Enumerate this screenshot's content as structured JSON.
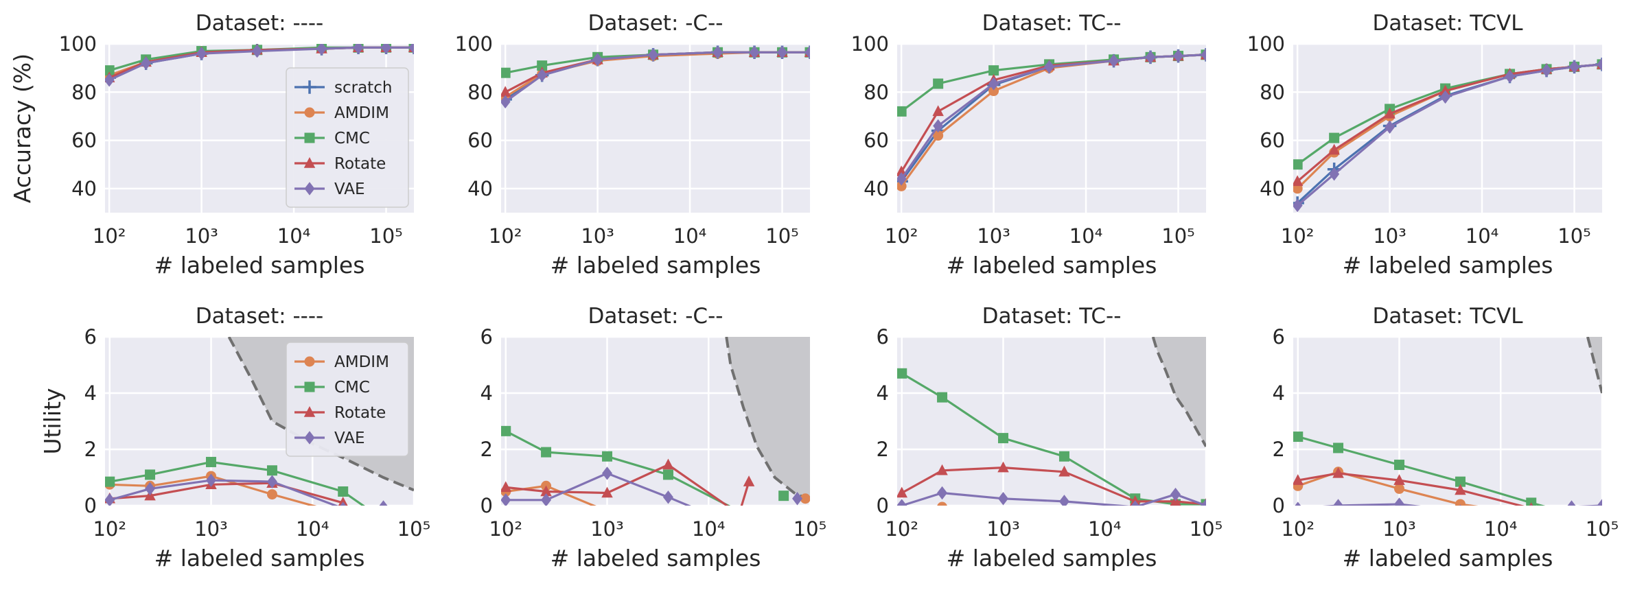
{
  "colors": {
    "scratch": "#4c72b0",
    "AMDIM": "#dd8452",
    "CMC": "#55a868",
    "Rotate": "#c44e52",
    "VAE": "#8172b3",
    "axes_bg": "#eaeaf2",
    "grid": "#ffffff",
    "shade": "#c8c8cc",
    "boundary": "#707070"
  },
  "markers": {
    "scratch": "plus",
    "AMDIM": "circle",
    "CMC": "square",
    "Rotate": "triangle",
    "VAE": "diamond"
  },
  "labels": {
    "xlabel": "# labeled samples",
    "ylabel_top": "Accuracy (%)",
    "ylabel_bottom": "Utility"
  },
  "chart_data": [
    {
      "type": "line",
      "row": "accuracy",
      "title": "Dataset: ----",
      "xlabel": "# labeled samples",
      "ylabel": "Accuracy (%)",
      "xscale": "log",
      "xlim": [
        90,
        200000
      ],
      "ylim": [
        30,
        100
      ],
      "xticks": [
        100,
        1000,
        10000,
        100000
      ],
      "yticks": [
        40,
        60,
        80,
        100
      ],
      "legend": {
        "position": "lower right",
        "entries": [
          "scratch",
          "AMDIM",
          "CMC",
          "Rotate",
          "VAE"
        ]
      },
      "series": [
        {
          "name": "scratch",
          "x": [
            100,
            250,
            1000,
            4000,
            20000,
            50000,
            100000,
            200000
          ],
          "y": [
            86,
            92,
            96,
            97.5,
            98,
            98.5,
            98.5,
            98.5
          ]
        },
        {
          "name": "AMDIM",
          "x": [
            100,
            250,
            1000,
            4000,
            20000,
            50000,
            100000,
            200000
          ],
          "y": [
            87,
            92.5,
            96.5,
            97.5,
            98,
            98.5,
            98.5,
            98.5
          ]
        },
        {
          "name": "CMC",
          "x": [
            100,
            250,
            1000,
            4000,
            20000,
            50000,
            100000,
            200000
          ],
          "y": [
            89,
            93.5,
            97,
            97.5,
            98.5,
            98.5,
            98.5,
            98.5
          ]
        },
        {
          "name": "Rotate",
          "x": [
            100,
            250,
            1000,
            4000,
            20000,
            50000,
            100000,
            200000
          ],
          "y": [
            86,
            92.5,
            96.5,
            97.5,
            98,
            98.5,
            98.5,
            98.5
          ]
        },
        {
          "name": "VAE",
          "x": [
            100,
            250,
            1000,
            4000,
            20000,
            50000,
            100000,
            200000
          ],
          "y": [
            85,
            92,
            96,
            97,
            98,
            98.5,
            98.5,
            98.5
          ]
        }
      ]
    },
    {
      "type": "line",
      "row": "accuracy",
      "title": "Dataset: -C--",
      "xlabel": "# labeled samples",
      "ylabel": "",
      "xscale": "log",
      "xlim": [
        90,
        200000
      ],
      "ylim": [
        30,
        100
      ],
      "xticks": [
        100,
        1000,
        10000,
        100000
      ],
      "yticks": [
        40,
        60,
        80,
        100
      ],
      "series": [
        {
          "name": "scratch",
          "x": [
            100,
            250,
            1000,
            4000,
            20000,
            50000,
            100000,
            200000
          ],
          "y": [
            77,
            87,
            93.5,
            95.5,
            96.5,
            96.5,
            96.5,
            96.5
          ]
        },
        {
          "name": "AMDIM",
          "x": [
            100,
            250,
            1000,
            4000,
            20000,
            50000,
            100000,
            200000
          ],
          "y": [
            78,
            87.5,
            93,
            95,
            96,
            96.5,
            96.5,
            96.5
          ]
        },
        {
          "name": "CMC",
          "x": [
            100,
            250,
            1000,
            4000,
            20000,
            50000,
            100000,
            200000
          ],
          "y": [
            88,
            91,
            94.5,
            95.5,
            96.5,
            96.5,
            96.5,
            96.5
          ]
        },
        {
          "name": "Rotate",
          "x": [
            100,
            250,
            1000,
            4000,
            20000,
            50000,
            100000,
            200000
          ],
          "y": [
            80,
            88,
            93.5,
            95.5,
            96.5,
            96.5,
            96.5,
            96.5
          ]
        },
        {
          "name": "VAE",
          "x": [
            100,
            250,
            1000,
            4000,
            20000,
            50000,
            100000,
            200000
          ],
          "y": [
            76,
            87,
            93.5,
            95.5,
            96.5,
            96.5,
            96.5,
            96.5
          ]
        }
      ]
    },
    {
      "type": "line",
      "row": "accuracy",
      "title": "Dataset: TC--",
      "xlabel": "# labeled samples",
      "ylabel": "",
      "xscale": "log",
      "xlim": [
        90,
        200000
      ],
      "ylim": [
        30,
        100
      ],
      "xticks": [
        100,
        1000,
        10000,
        100000
      ],
      "yticks": [
        40,
        60,
        80,
        100
      ],
      "series": [
        {
          "name": "scratch",
          "x": [
            100,
            250,
            1000,
            4000,
            20000,
            50000,
            100000,
            200000
          ],
          "y": [
            43,
            64,
            83,
            90.5,
            93,
            94.5,
            95,
            95.5
          ]
        },
        {
          "name": "AMDIM",
          "x": [
            100,
            250,
            1000,
            4000,
            20000,
            50000,
            100000,
            200000
          ],
          "y": [
            41,
            62,
            80.5,
            90,
            93,
            94.5,
            95,
            95.5
          ]
        },
        {
          "name": "CMC",
          "x": [
            100,
            250,
            1000,
            4000,
            20000,
            50000,
            100000,
            200000
          ],
          "y": [
            72,
            83.5,
            89,
            91.5,
            93.5,
            94.5,
            95,
            95.5
          ]
        },
        {
          "name": "Rotate",
          "x": [
            100,
            250,
            1000,
            4000,
            20000,
            50000,
            100000,
            200000
          ],
          "y": [
            47,
            72,
            85,
            91,
            93,
            94.5,
            95,
            95.5
          ]
        },
        {
          "name": "VAE",
          "x": [
            100,
            250,
            1000,
            4000,
            20000,
            50000,
            100000,
            200000
          ],
          "y": [
            44,
            66,
            83.5,
            90.5,
            93,
            94.5,
            95,
            95.5
          ]
        }
      ]
    },
    {
      "type": "line",
      "row": "accuracy",
      "title": "Dataset: TCVL",
      "xlabel": "# labeled samples",
      "ylabel": "",
      "xscale": "log",
      "xlim": [
        90,
        200000
      ],
      "ylim": [
        30,
        100
      ],
      "xticks": [
        100,
        1000,
        10000,
        100000
      ],
      "yticks": [
        40,
        60,
        80,
        100
      ],
      "series": [
        {
          "name": "scratch",
          "x": [
            100,
            250,
            1000,
            4000,
            20000,
            50000,
            100000,
            200000
          ],
          "y": [
            34,
            48,
            66,
            78.5,
            86.5,
            89,
            90.5,
            91.5
          ]
        },
        {
          "name": "AMDIM",
          "x": [
            100,
            250,
            1000,
            4000,
            20000,
            50000,
            100000,
            200000
          ],
          "y": [
            40,
            55,
            70,
            80.5,
            87.5,
            89.5,
            90.5,
            91.5
          ]
        },
        {
          "name": "CMC",
          "x": [
            100,
            250,
            1000,
            4000,
            20000,
            50000,
            100000,
            200000
          ],
          "y": [
            50,
            61,
            73,
            81.5,
            87.5,
            89.5,
            90.5,
            91.5
          ]
        },
        {
          "name": "Rotate",
          "x": [
            100,
            250,
            1000,
            4000,
            20000,
            50000,
            100000,
            200000
          ],
          "y": [
            43,
            56,
            71,
            80.5,
            87.5,
            89.5,
            90.5,
            91.5
          ]
        },
        {
          "name": "VAE",
          "x": [
            100,
            250,
            1000,
            4000,
            20000,
            50000,
            100000,
            200000
          ],
          "y": [
            33,
            46,
            65.5,
            78,
            86.5,
            89,
            90.5,
            91.5
          ]
        }
      ]
    },
    {
      "type": "line",
      "row": "utility",
      "title": "Dataset: ----",
      "xlabel": "# labeled samples",
      "ylabel": "Utility",
      "xscale": "log",
      "xlim": [
        90,
        100000
      ],
      "ylim": [
        0,
        6
      ],
      "xticks": [
        100,
        1000,
        10000,
        100000
      ],
      "yticks": [
        0,
        2,
        4,
        6
      ],
      "legend": {
        "position": "upper right",
        "entries": [
          "AMDIM",
          "CMC",
          "Rotate",
          "VAE"
        ]
      },
      "boundary": {
        "x": [
          1500,
          2500,
          4000,
          10000,
          20000,
          50000,
          100000
        ],
        "y": [
          6,
          4.5,
          3,
          2.2,
          1.7,
          1.0,
          0.55
        ]
      },
      "series": [
        {
          "name": "AMDIM",
          "x": [
            100,
            250,
            1000,
            4000,
            20000
          ],
          "y": [
            0.75,
            0.7,
            1.05,
            0.4,
            -0.3
          ]
        },
        {
          "name": "CMC",
          "x": [
            100,
            250,
            1000,
            4000,
            20000,
            50000
          ],
          "y": [
            0.85,
            1.1,
            1.55,
            1.25,
            0.5,
            -0.5
          ]
        },
        {
          "name": "Rotate",
          "x": [
            100,
            250,
            1000,
            4000,
            20000
          ],
          "y": [
            0.25,
            0.35,
            0.75,
            0.8,
            0.1
          ]
        },
        {
          "name": "VAE",
          "x": [
            100,
            250,
            1000,
            4000,
            20000,
            50000
          ],
          "y": [
            0.2,
            0.6,
            0.9,
            0.85,
            -0.1,
            -0.05
          ]
        }
      ]
    },
    {
      "type": "line",
      "row": "utility",
      "title": "Dataset: -C--",
      "xlabel": "# labeled samples",
      "ylabel": "",
      "xscale": "log",
      "xlim": [
        90,
        100000
      ],
      "ylim": [
        0,
        6
      ],
      "xticks": [
        100,
        1000,
        10000,
        100000
      ],
      "yticks": [
        0,
        2,
        4,
        6
      ],
      "boundary": {
        "x": [
          15000,
          16500,
          22000,
          30000,
          45000,
          70000,
          100000
        ],
        "y": [
          6,
          5.0,
          3.5,
          2.1,
          1.0,
          0.45,
          0.2
        ]
      },
      "series": [
        {
          "name": "AMDIM",
          "x": [
            100,
            250,
            1000
          ],
          "y": [
            0.5,
            0.7,
            -0.2
          ]
        },
        {
          "name": "CMC",
          "x": [
            100,
            250,
            1000,
            4000,
            20000
          ],
          "y": [
            2.65,
            1.9,
            1.75,
            1.1,
            -0.2
          ]
        },
        {
          "name": "Rotate",
          "x": [
            100,
            250,
            1000,
            4000,
            20000,
            25000
          ],
          "y": [
            0.65,
            0.5,
            0.45,
            1.45,
            -0.3,
            0.85
          ]
        },
        {
          "name": "VAE",
          "x": [
            100,
            250,
            1000,
            4000,
            10000
          ],
          "y": [
            0.2,
            0.2,
            1.15,
            0.3,
            -0.3
          ]
        },
        {
          "name": "AMDIM",
          "x": [
            90000
          ],
          "y": [
            0.25
          ]
        },
        {
          "name": "CMC",
          "x": [
            55000
          ],
          "y": [
            0.35
          ]
        },
        {
          "name": "VAE",
          "x": [
            75000
          ],
          "y": [
            0.25
          ]
        }
      ]
    },
    {
      "type": "line",
      "row": "utility",
      "title": "Dataset: TC--",
      "xlabel": "# labeled samples",
      "ylabel": "",
      "xscale": "log",
      "xlim": [
        90,
        100000
      ],
      "ylim": [
        0,
        6
      ],
      "xticks": [
        100,
        1000,
        10000,
        100000
      ],
      "yticks": [
        0,
        2,
        4,
        6
      ],
      "boundary": {
        "x": [
          30000,
          33000,
          40000,
          50000,
          65000,
          100000
        ],
        "y": [
          6,
          5.5,
          4.8,
          3.9,
          3.3,
          2.1
        ]
      },
      "series": [
        {
          "name": "AMDIM",
          "x": [
            100,
            250
          ],
          "y": [
            -0.1,
            -0.05
          ]
        },
        {
          "name": "CMC",
          "x": [
            100,
            250,
            1000,
            4000,
            20000,
            50000,
            100000
          ],
          "y": [
            4.7,
            3.85,
            2.4,
            1.75,
            0.25,
            0.05,
            0.05
          ]
        },
        {
          "name": "Rotate",
          "x": [
            100,
            250,
            1000,
            4000,
            20000,
            50000,
            100000
          ],
          "y": [
            0.45,
            1.25,
            1.35,
            1.2,
            0.15,
            0.15,
            0.05
          ]
        },
        {
          "name": "VAE",
          "x": [
            100,
            250,
            1000,
            4000,
            20000,
            50000,
            100000
          ],
          "y": [
            0.0,
            0.45,
            0.25,
            0.15,
            -0.05,
            0.4,
            0.0
          ]
        }
      ]
    },
    {
      "type": "line",
      "row": "utility",
      "title": "Dataset: TCVL",
      "xlabel": "# labeled samples",
      "ylabel": "",
      "xscale": "log",
      "xlim": [
        90,
        100000
      ],
      "ylim": [
        0,
        6
      ],
      "xticks": [
        100,
        1000,
        10000,
        100000
      ],
      "yticks": [
        0,
        2,
        4,
        6
      ],
      "boundary": {
        "x": [
          72000,
          85000,
          100000
        ],
        "y": [
          6,
          5.0,
          4.0
        ]
      },
      "series": [
        {
          "name": "AMDIM",
          "x": [
            100,
            250,
            1000,
            4000,
            20000
          ],
          "y": [
            0.7,
            1.2,
            0.6,
            0.05,
            -0.3
          ]
        },
        {
          "name": "CMC",
          "x": [
            100,
            250,
            1000,
            4000,
            20000,
            50000
          ],
          "y": [
            2.45,
            2.05,
            1.45,
            0.85,
            0.1,
            -0.3
          ]
        },
        {
          "name": "Rotate",
          "x": [
            100,
            250,
            1000,
            4000,
            20000
          ],
          "y": [
            0.9,
            1.15,
            0.9,
            0.55,
            -0.1
          ]
        },
        {
          "name": "VAE",
          "x": [
            100,
            250,
            1000,
            4000,
            20000,
            50000,
            100000
          ],
          "y": [
            -0.1,
            0.0,
            0.05,
            -0.2,
            -0.2,
            -0.05,
            0.0
          ]
        }
      ]
    }
  ]
}
